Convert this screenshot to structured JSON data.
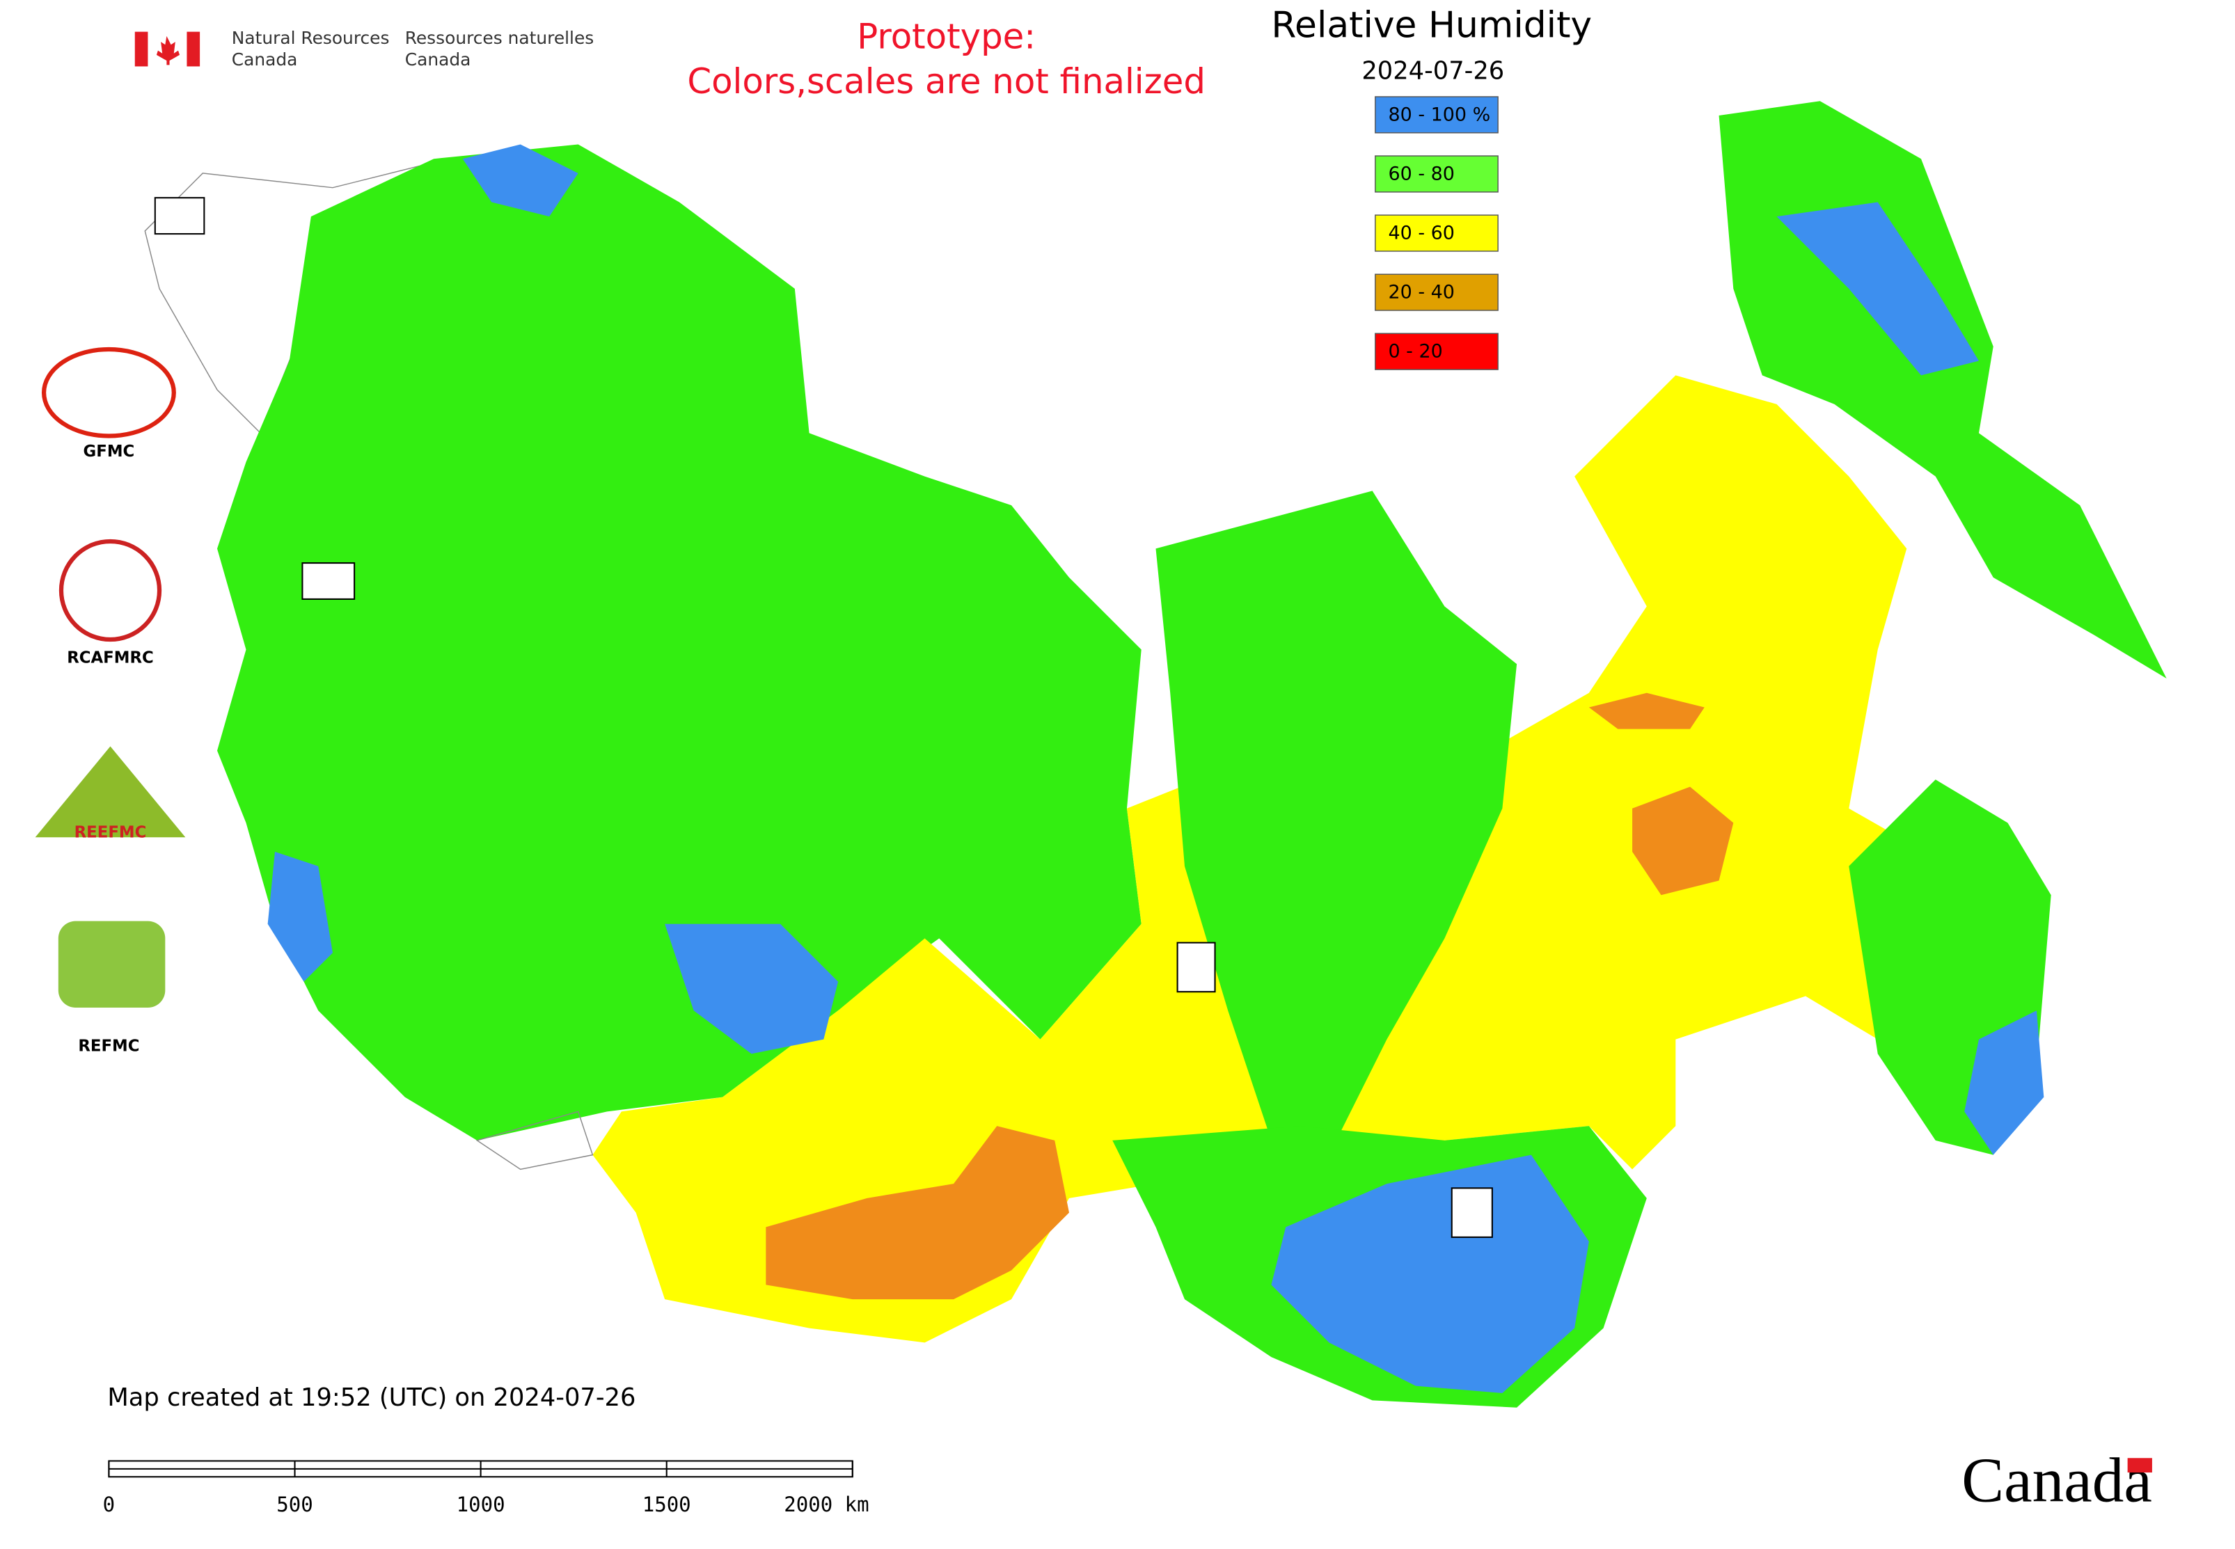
{
  "header": {
    "agency_en_1": "Natural Resources",
    "agency_en_2": "Canada",
    "agency_fr_1": "Ressources naturelles",
    "agency_fr_2": "Canada",
    "notice_1": "Prototype:",
    "notice_2": "Colors,scales are not finalized"
  },
  "map": {
    "title": "Relative Humidity",
    "date": "2024-07-26",
    "legend": [
      {
        "label": "80 - 100 %",
        "color": "#3d8fef"
      },
      {
        "label": "60 - 80",
        "color": "#66ff33"
      },
      {
        "label": "40 - 60",
        "color": "#ffff00"
      },
      {
        "label": "20 - 40",
        "color": "#e0a000"
      },
      {
        "label": "0 - 20",
        "color": "#ff0000"
      }
    ],
    "created": "Map created at 19:52 (UTC) on 2024-07-26",
    "scale_bar": [
      "0",
      "500",
      "1000",
      "1500",
      "2000 km"
    ]
  },
  "logos": [
    "GFMC",
    "RCAFMRC",
    "REEFMC",
    "REFMC"
  ],
  "wordmark": "Canada"
}
